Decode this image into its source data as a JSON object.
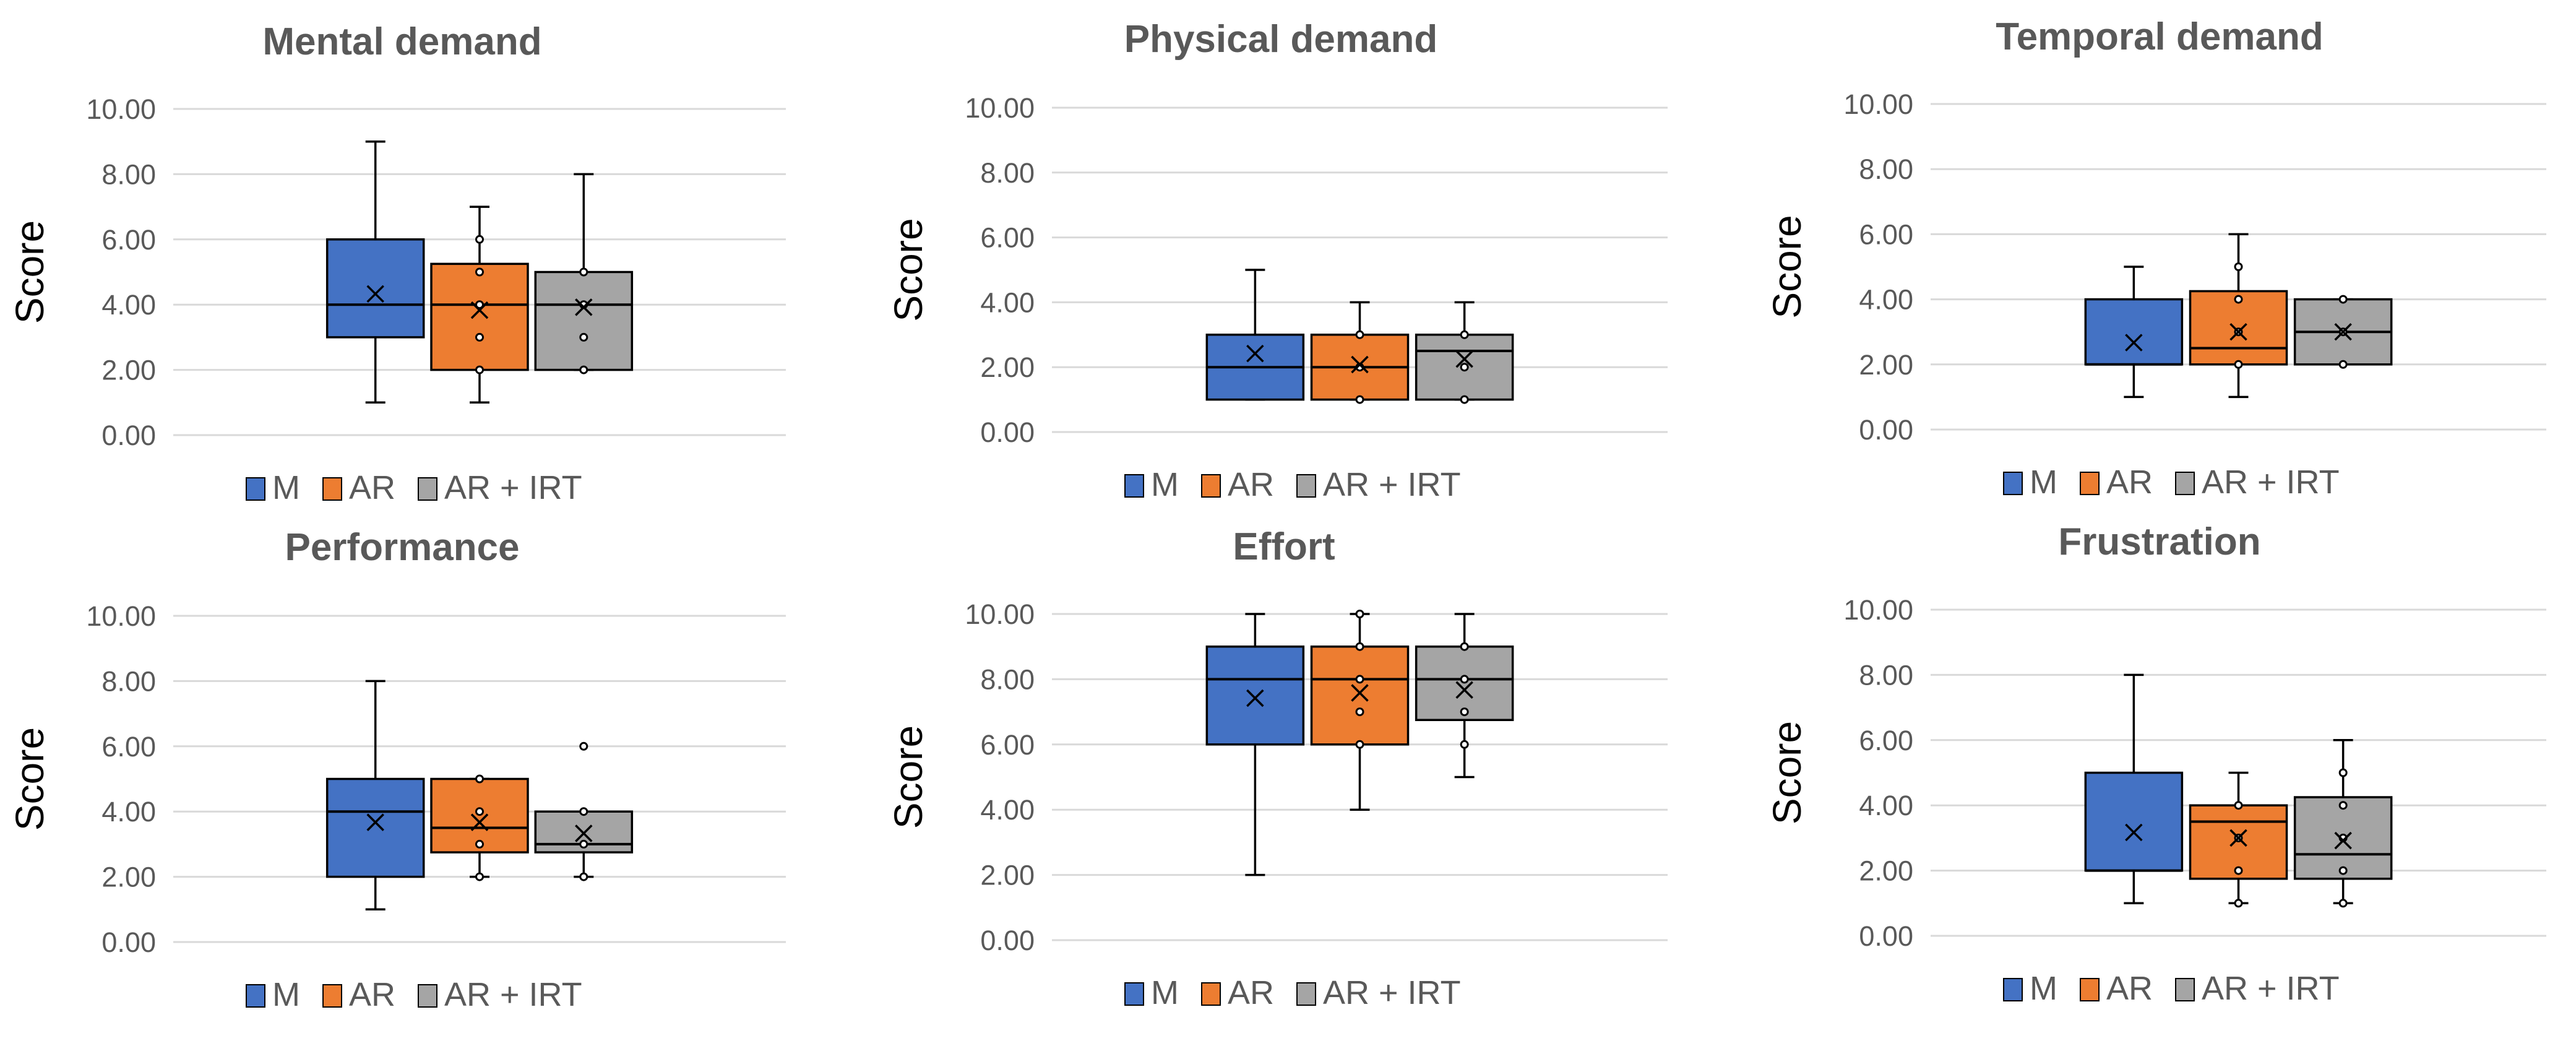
{
  "figure": {
    "legend": [
      {
        "label": "M",
        "color": "#4472C4"
      },
      {
        "label": "AR",
        "color": "#ED7D31"
      },
      {
        "label": "AR + IRT",
        "color": "#A5A5A5"
      }
    ]
  },
  "chart_data": [
    {
      "type": "box",
      "title": "Mental demand",
      "ylabel": "Score",
      "ylim": [
        0,
        10
      ],
      "yticks": [
        "0.00",
        "2.00",
        "4.00",
        "6.00",
        "8.00",
        "10.00"
      ],
      "series": [
        {
          "name": "M",
          "min": 1,
          "q1": 3,
          "median": 4,
          "q3": 6,
          "max": 9,
          "mean": 4.33,
          "points": []
        },
        {
          "name": "AR",
          "min": 1,
          "q1": 2,
          "median": 4,
          "q3": 5.25,
          "max": 7,
          "mean": 3.83,
          "points": [
            2,
            3,
            4,
            5,
            6
          ]
        },
        {
          "name": "AR + IRT",
          "min": 2,
          "q1": 2,
          "median": 4,
          "q3": 5,
          "max": 8,
          "mean": 3.92,
          "points": [
            2,
            3,
            4,
            5
          ]
        }
      ]
    },
    {
      "type": "box",
      "title": "Physical demand",
      "ylabel": "Score",
      "ylim": [
        0,
        10
      ],
      "yticks": [
        "0.00",
        "2.00",
        "4.00",
        "6.00",
        "8.00",
        "10.00"
      ],
      "series": [
        {
          "name": "M",
          "min": 1,
          "q1": 1,
          "median": 2,
          "q3": 3,
          "max": 5,
          "mean": 2.42,
          "points": []
        },
        {
          "name": "AR",
          "min": 1,
          "q1": 1,
          "median": 2,
          "q3": 3,
          "max": 4,
          "mean": 2.08,
          "points": [
            1,
            2,
            3
          ]
        },
        {
          "name": "AR + IRT",
          "min": 1,
          "q1": 1,
          "median": 2.5,
          "q3": 3,
          "max": 4,
          "mean": 2.25,
          "points": [
            1,
            2,
            3
          ]
        }
      ]
    },
    {
      "type": "box",
      "title": "Temporal demand",
      "ylabel": "Score",
      "ylim": [
        0,
        10
      ],
      "yticks": [
        "0.00",
        "2.00",
        "4.00",
        "6.00",
        "8.00",
        "10.00"
      ],
      "series": [
        {
          "name": "M",
          "min": 1,
          "q1": 2,
          "median": 2,
          "q3": 4,
          "max": 5,
          "mean": 2.67,
          "points": []
        },
        {
          "name": "AR",
          "min": 1,
          "q1": 2,
          "median": 2.5,
          "q3": 4.25,
          "max": 6,
          "mean": 3.0,
          "points": [
            2,
            3,
            4,
            5
          ]
        },
        {
          "name": "AR + IRT",
          "min": 2,
          "q1": 2,
          "median": 3,
          "q3": 4,
          "max": 4,
          "mean": 3.0,
          "points": [
            2,
            3,
            4
          ]
        }
      ]
    },
    {
      "type": "box",
      "title": "Performance",
      "ylabel": "Score",
      "ylim": [
        0,
        10
      ],
      "yticks": [
        "0.00",
        "2.00",
        "4.00",
        "6.00",
        "8.00",
        "10.00"
      ],
      "series": [
        {
          "name": "M",
          "min": 1,
          "q1": 2,
          "median": 4,
          "q3": 5,
          "max": 8,
          "mean": 3.67,
          "points": []
        },
        {
          "name": "AR",
          "min": 2,
          "q1": 2.75,
          "median": 3.5,
          "q3": 5,
          "max": 5,
          "mean": 3.67,
          "points": [
            2,
            3,
            4,
            5
          ]
        },
        {
          "name": "AR + IRT",
          "min": 2,
          "q1": 2.75,
          "median": 3,
          "q3": 4,
          "max": 4,
          "mean": 3.33,
          "points": [
            2,
            3,
            4,
            6
          ]
        }
      ]
    },
    {
      "type": "box",
      "title": "Effort",
      "ylabel": "Score",
      "ylim": [
        0,
        10
      ],
      "yticks": [
        "0.00",
        "2.00",
        "4.00",
        "6.00",
        "8.00",
        "10.00"
      ],
      "series": [
        {
          "name": "M",
          "min": 2,
          "q1": 6,
          "median": 8,
          "q3": 9,
          "max": 10,
          "mean": 7.42,
          "points": []
        },
        {
          "name": "AR",
          "min": 4,
          "q1": 6,
          "median": 8,
          "q3": 9,
          "max": 10,
          "mean": 7.58,
          "points": [
            6,
            7,
            8,
            9,
            10
          ]
        },
        {
          "name": "AR + IRT",
          "min": 5,
          "q1": 6.75,
          "median": 8,
          "q3": 9,
          "max": 10,
          "mean": 7.67,
          "points": [
            6,
            7,
            8,
            9
          ]
        }
      ]
    },
    {
      "type": "box",
      "title": "Frustration",
      "ylabel": "Score",
      "ylim": [
        0,
        10
      ],
      "yticks": [
        "0.00",
        "2.00",
        "4.00",
        "6.00",
        "8.00",
        "10.00"
      ],
      "series": [
        {
          "name": "M",
          "min": 1,
          "q1": 2,
          "median": 2,
          "q3": 5,
          "max": 8,
          "mean": 3.17,
          "points": []
        },
        {
          "name": "AR",
          "min": 1,
          "q1": 1.75,
          "median": 3.5,
          "q3": 4,
          "max": 5,
          "mean": 3.0,
          "points": [
            1,
            2,
            3,
            4
          ]
        },
        {
          "name": "AR + IRT",
          "min": 1,
          "q1": 1.75,
          "median": 2.5,
          "q3": 4.25,
          "max": 6,
          "mean": 2.92,
          "points": [
            1,
            2,
            3,
            4,
            5
          ]
        }
      ]
    }
  ]
}
